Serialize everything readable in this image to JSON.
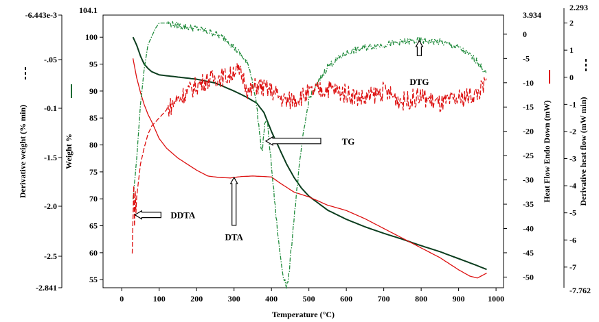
{
  "chart_data": {
    "type": "line",
    "title": "",
    "xlabel": "Temperature (°C)",
    "xlim": [
      -50,
      1020
    ],
    "xticks": [
      0,
      100,
      200,
      300,
      400,
      500,
      600,
      700,
      800,
      900,
      1000
    ],
    "axes": {
      "weight": {
        "label": "Weight %",
        "range": [
          53.5,
          104.1
        ],
        "ticks": [
          55,
          60,
          65,
          70,
          75,
          80,
          85,
          90,
          95,
          100
        ],
        "top_label": "104.1"
      },
      "derivative_weight": {
        "label": "Derivative weight (% min)",
        "ticks": [
          "-6.443e-3",
          "-.05",
          "-0.1",
          "-1.5",
          "-2.0",
          "-2.5",
          "-2.841"
        ]
      },
      "heat_flow": {
        "label": "Heat Flow Endo Down (mW)",
        "range": [
          -52.2,
          3.934
        ],
        "ticks": [
          0,
          -5,
          -10,
          -15,
          -20,
          -25,
          -30,
          -35,
          -40,
          -45,
          -50
        ],
        "top_label": "3.934"
      },
      "derivative_heat_flow": {
        "label": "Derivative heat flow (mW min)",
        "range": [
          -7.762,
          2.293
        ],
        "ticks": [
          2,
          1,
          0,
          -1,
          -2,
          -3,
          -4,
          -5,
          -6,
          -7
        ],
        "top_label": "2.293",
        "bottom_label": "-7.762"
      }
    },
    "series": [
      {
        "name": "TG",
        "axis": "weight",
        "color": "#0b3d1e",
        "style": "solid",
        "x": [
          30,
          40,
          50,
          60,
          70,
          80,
          100,
          150,
          200,
          250,
          300,
          330,
          360,
          380,
          400,
          420,
          440,
          460,
          480,
          500,
          550,
          600,
          650,
          700,
          750,
          800,
          850,
          900,
          950,
          975
        ],
        "y": [
          100,
          98.5,
          96.5,
          95,
          94.2,
          93.6,
          93.0,
          92.6,
          92.2,
          91.5,
          90.0,
          89.0,
          87.8,
          86.0,
          82.5,
          79.5,
          76.5,
          74.0,
          72.0,
          70.5,
          67.9,
          66.2,
          64.8,
          63.6,
          62.5,
          61.3,
          60.2,
          58.9,
          57.6,
          56.9
        ]
      },
      {
        "name": "DTA",
        "axis": "heat_flow",
        "color": "#dd1111",
        "style": "solid",
        "x": [
          30,
          40,
          50,
          60,
          70,
          80,
          100,
          120,
          150,
          180,
          200,
          230,
          260,
          290,
          320,
          350,
          380,
          400,
          420,
          440,
          460,
          500,
          550,
          600,
          650,
          700,
          750,
          800,
          850,
          900,
          930,
          950,
          975
        ],
        "y": [
          -5,
          -9,
          -12,
          -14.5,
          -16.5,
          -18,
          -21.5,
          -23.5,
          -25.5,
          -27,
          -28,
          -29.2,
          -29.5,
          -29.6,
          -29.3,
          -29.2,
          -29.3,
          -29.4,
          -30.5,
          -31.5,
          -32.5,
          -33.5,
          -35.2,
          -36.3,
          -38,
          -40,
          -42,
          -44,
          -46,
          -48.5,
          -49.8,
          -50.2,
          -49.2
        ]
      },
      {
        "name": "DTG",
        "axis": "derivative_heat_flow",
        "color": "#1e8a3a",
        "style": "dash-dot",
        "x": [
          30,
          40,
          50,
          60,
          70,
          80,
          90,
          100,
          120,
          150,
          200,
          250,
          280,
          300,
          320,
          340,
          350,
          360,
          370,
          375,
          380,
          385,
          390,
          395,
          400,
          410,
          420,
          430,
          440,
          445,
          450,
          460,
          480,
          500,
          550,
          600,
          650,
          700,
          750,
          800,
          850,
          900,
          950,
          975
        ],
        "y": [
          -4.5,
          -3.0,
          -1.0,
          0.3,
          1.2,
          1.5,
          1.8,
          2.0,
          2.0,
          1.9,
          1.8,
          1.6,
          1.4,
          1.1,
          0.8,
          0.4,
          -0.2,
          -1.0,
          -2.3,
          -2.8,
          -2.0,
          -1.5,
          -1.8,
          -2.5,
          -3.3,
          -4.8,
          -6.2,
          -7.2,
          -7.7,
          -7.5,
          -6.8,
          -5.2,
          -2.6,
          -0.8,
          0.4,
          0.9,
          1.1,
          1.2,
          1.3,
          1.35,
          1.3,
          1.1,
          0.6,
          0.1
        ]
      },
      {
        "name": "DDTA",
        "axis": "derivative_heat_flow",
        "color": "#dd1111",
        "style": "dashed",
        "x": [
          28,
          30,
          32,
          34,
          36,
          38,
          40,
          45,
          50,
          60,
          70,
          80,
          100,
          120,
          150,
          180,
          200,
          230,
          260,
          290,
          300,
          320,
          330,
          340,
          360,
          380,
          400,
          420,
          440,
          460,
          500,
          550,
          600,
          650,
          700,
          750,
          800,
          850,
          900,
          950,
          975
        ],
        "y": [
          -6.5,
          -5.2,
          -4.0,
          -5.5,
          -4.2,
          -5.0,
          -4.4,
          -3.8,
          -3.2,
          -2.6,
          -2.1,
          -1.8,
          -1.5,
          -1.2,
          -0.8,
          -0.5,
          -0.3,
          -0.1,
          0.0,
          0.05,
          0.3,
          0.1,
          -0.2,
          -0.6,
          -0.3,
          -0.4,
          -0.5,
          -0.7,
          -0.9,
          -0.8,
          -0.6,
          -0.4,
          -0.6,
          -0.8,
          -0.5,
          -0.9,
          -0.7,
          -1.0,
          -0.8,
          -0.6,
          -0.2
        ]
      }
    ],
    "annotations": [
      {
        "text": "DTG",
        "x": 795,
        "y_axis": "derivative_heat_flow",
        "y": 0.05,
        "arrow": "up"
      },
      {
        "text": "TG",
        "x": 440,
        "y_axis": "weight",
        "y": 82,
        "arrow": "left"
      },
      {
        "text": "DTA",
        "x": 300,
        "y_axis": "heat_flow",
        "y": -40,
        "arrow": "up"
      },
      {
        "text": "DDTA",
        "x": 90,
        "y_axis": "heat_flow",
        "y": -37.2,
        "arrow": "left"
      }
    ],
    "legend_keys": [
      {
        "axis": "derivative_weight",
        "style": "dashed",
        "color": "#000000"
      },
      {
        "axis": "weight",
        "style": "solid",
        "color": "#1e6b34"
      },
      {
        "axis": "heat_flow",
        "style": "solid",
        "color": "#dd1111"
      },
      {
        "axis": "derivative_heat_flow",
        "style": "dashed",
        "color": "#000000"
      }
    ]
  }
}
